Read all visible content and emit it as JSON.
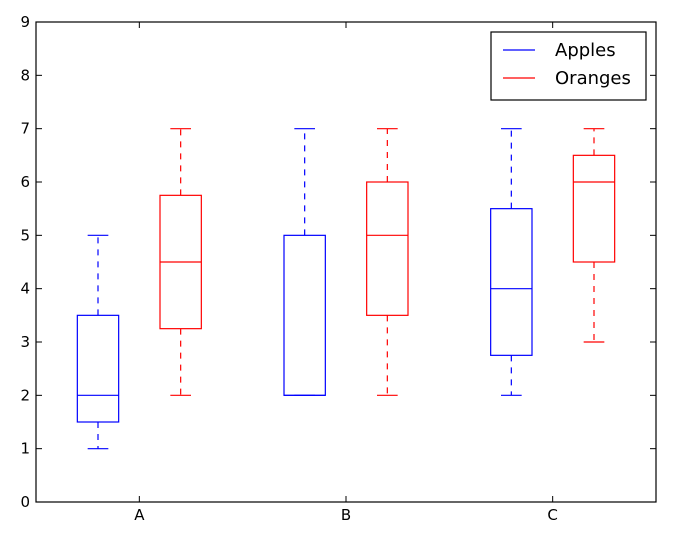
{
  "chart_data": {
    "type": "box",
    "categories": [
      "A",
      "B",
      "C"
    ],
    "ylim": [
      0,
      9
    ],
    "yticks": [
      "0",
      "1",
      "2",
      "3",
      "4",
      "5",
      "6",
      "7",
      "8",
      "9"
    ],
    "grid": false,
    "legend_position": "top-right",
    "series": [
      {
        "name": "Apples",
        "color": "#0000ff",
        "boxes": [
          {
            "whisker_low": 1,
            "q1": 1.5,
            "median": 2,
            "q3": 3.5,
            "whisker_high": 5
          },
          {
            "whisker_low": 2,
            "q1": 2,
            "median": 2,
            "q3": 5,
            "whisker_high": 7
          },
          {
            "whisker_low": 2,
            "q1": 2.75,
            "median": 4,
            "q3": 5.5,
            "whisker_high": 7
          }
        ]
      },
      {
        "name": "Oranges",
        "color": "#ff0000",
        "boxes": [
          {
            "whisker_low": 2,
            "q1": 3.25,
            "median": 4.5,
            "q3": 5.75,
            "whisker_high": 7
          },
          {
            "whisker_low": 2,
            "q1": 3.5,
            "median": 5,
            "q3": 6,
            "whisker_high": 7
          },
          {
            "whisker_low": 3,
            "q1": 4.5,
            "median": 6,
            "q3": 6.5,
            "whisker_high": 7
          }
        ]
      }
    ]
  }
}
